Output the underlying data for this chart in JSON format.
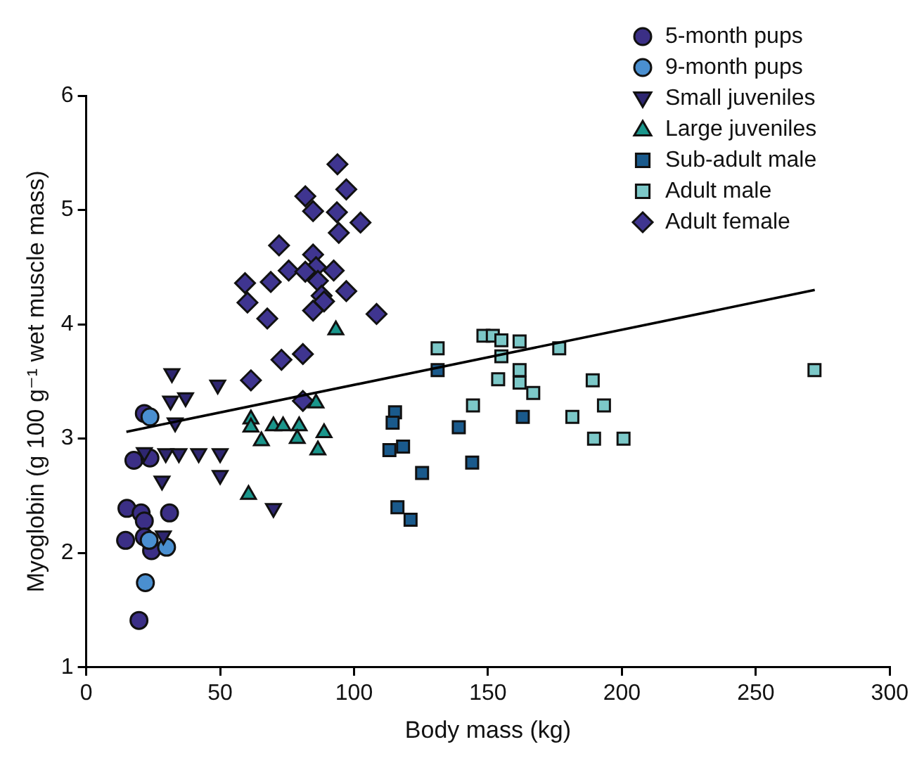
{
  "chart_data": {
    "type": "scatter",
    "xlabel": "Body mass (kg)",
    "ylabel": "Myoglobin (g 100 g⁻¹ wet muscle mass)",
    "xlim": [
      0,
      300
    ],
    "xticks": [
      0,
      50,
      100,
      150,
      200,
      250,
      300
    ],
    "ylim": [
      1,
      6
    ],
    "yticks": [
      1,
      2,
      3,
      4,
      5,
      6
    ],
    "grid": false,
    "legend": "top right",
    "series": [
      {
        "name": "5-month pups",
        "color": "#3b2f86",
        "marker": "circle",
        "x": [
          19.7,
          17.8,
          23.8,
          21.7,
          15.2,
          20.5,
          21.7,
          31.1,
          14.7,
          21.7,
          24.4
        ],
        "values": [
          1.41,
          2.81,
          2.83,
          3.22,
          2.39,
          2.35,
          2.28,
          2.35,
          2.11,
          2.14,
          2.02
        ]
      },
      {
        "name": "9-month pups",
        "color": "#4a8fd0",
        "marker": "circle",
        "x": [
          23.8,
          23.5,
          30.0,
          22.1
        ],
        "values": [
          3.19,
          2.11,
          2.05,
          1.74
        ]
      },
      {
        "name": "Small juveniles",
        "color": "#2e2670",
        "marker": "triangle-down",
        "x": [
          32,
          31.5,
          37.1,
          33.2,
          49.1,
          21.7,
          29.7,
          34.6,
          42,
          50,
          28.3,
          50,
          28.8,
          69.9
        ],
        "values": [
          3.57,
          3.33,
          3.36,
          3.14,
          3.47,
          2.88,
          2.87,
          2.87,
          2.87,
          2.87,
          2.63,
          2.68,
          2.15,
          2.39
        ]
      },
      {
        "name": "Large juveniles",
        "color": "#1a968c",
        "marker": "triangle",
        "x": [
          93.2,
          61.5,
          61.5,
          69.9,
          73.5,
          79.5,
          85.8,
          88.8,
          65.4,
          78.8,
          86.5,
          60.6
        ],
        "values": [
          3.95,
          3.17,
          3.1,
          3.11,
          3.11,
          3.11,
          3.31,
          3.05,
          2.98,
          3.0,
          2.9,
          2.51
        ]
      },
      {
        "name": "Sub-adult male",
        "color": "#1a5a8c",
        "marker": "square",
        "x": [
          131.2,
          115.3,
          114.4,
          118.3,
          113.2,
          139.1,
          163,
          125.4,
          144.1,
          116.2,
          121.1
        ],
        "values": [
          3.6,
          3.23,
          3.14,
          2.93,
          2.9,
          3.1,
          3.19,
          2.7,
          2.79,
          2.4,
          2.29
        ]
      },
      {
        "name": "Adult male",
        "color": "#7cc8c8",
        "marker": "square",
        "x": [
          131.2,
          148.3,
          151.8,
          155,
          161.8,
          176.6,
          155,
          161.8,
          153.8,
          161.8,
          166.9,
          189.1,
          144.4,
          193.3,
          181.5,
          189.6,
          200.6,
          271.9
        ],
        "values": [
          3.79,
          3.9,
          3.9,
          3.86,
          3.85,
          3.79,
          3.72,
          3.6,
          3.52,
          3.49,
          3.4,
          3.51,
          3.29,
          3.29,
          3.19,
          3.0,
          3.0,
          3.6
        ]
      },
      {
        "name": "Adult female",
        "color": "#3f3590",
        "marker": "diamond",
        "x": [
          93.8,
          97.1,
          81.8,
          84.7,
          93.6,
          102.4,
          94.3,
          72.0,
          84.7,
          85.8,
          75.6,
          81.8,
          92.4,
          59.3,
          68.9,
          86.5,
          97.1,
          60.2,
          87.9,
          88.8,
          84.7,
          67.6,
          108.4,
          80.9,
          72.9,
          61.5,
          80.9
        ],
        "values": [
          5.4,
          5.18,
          5.12,
          4.99,
          4.98,
          4.89,
          4.8,
          4.69,
          4.61,
          4.5,
          4.47,
          4.46,
          4.47,
          4.36,
          4.37,
          4.38,
          4.29,
          4.19,
          4.25,
          4.2,
          4.12,
          4.05,
          4.09,
          3.74,
          3.69,
          3.51,
          3.33
        ]
      },
      {
        "type": "line",
        "color": "#000000",
        "marker": "none",
        "x": [
          15,
          272
        ],
        "values": [
          3.06,
          4.3
        ]
      }
    ]
  }
}
